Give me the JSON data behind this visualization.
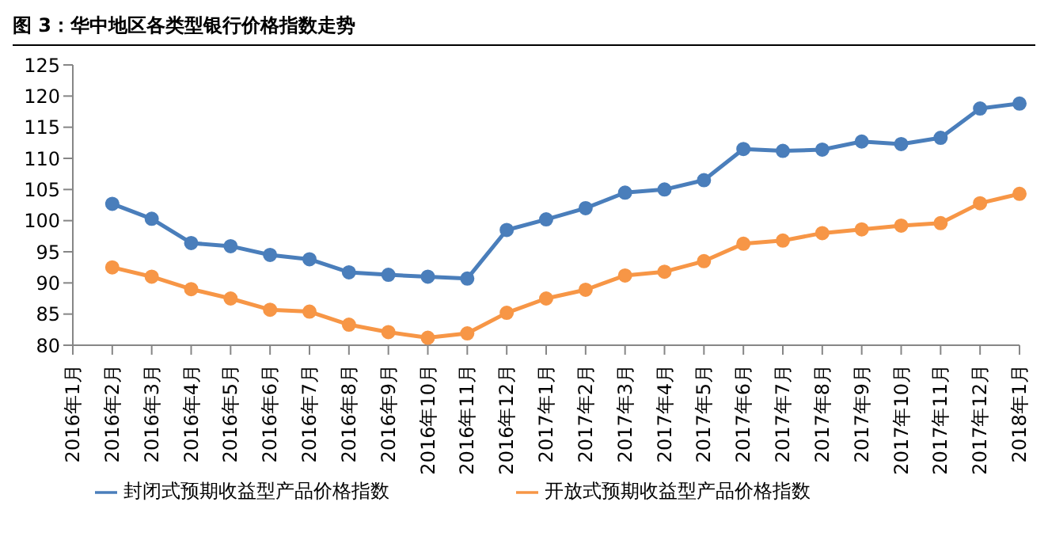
{
  "chart_data": {
    "type": "line",
    "title": "图 3：华中地区各类型银行价格指数走势",
    "categories": [
      "2016年1月",
      "2016年2月",
      "2016年3月",
      "2016年4月",
      "2016年5月",
      "2016年6月",
      "2016年7月",
      "2016年8月",
      "2016年9月",
      "2016年10月",
      "2016年11月",
      "2016年12月",
      "2017年1月",
      "2017年2月",
      "2017年3月",
      "2017年4月",
      "2017年5月",
      "2017年6月",
      "2017年7月",
      "2017年8月",
      "2017年9月",
      "2017年10月",
      "2017年11月",
      "2017年12月",
      "2018年1月"
    ],
    "series": [
      {
        "name": "封闭式预期收益型产品价格指数",
        "color": "#4a7ebb",
        "values": [
          null,
          102.7,
          100.3,
          96.4,
          95.9,
          94.5,
          93.8,
          91.7,
          91.3,
          91.0,
          90.7,
          98.5,
          100.2,
          102.0,
          104.5,
          105.0,
          106.5,
          111.5,
          111.2,
          111.4,
          112.7,
          112.3,
          113.3,
          118.0,
          118.8
        ]
      },
      {
        "name": "开放式预期收益型产品价格指数",
        "color": "#f79646",
        "values": [
          null,
          92.5,
          91.0,
          89.0,
          87.5,
          85.7,
          85.4,
          83.3,
          82.1,
          81.2,
          81.9,
          85.2,
          87.5,
          88.9,
          91.2,
          91.8,
          93.5,
          96.3,
          96.8,
          98.0,
          98.6,
          99.2,
          99.6,
          102.8,
          104.3
        ]
      }
    ],
    "ylim": [
      80,
      125
    ],
    "yticks": [
      80,
      85,
      90,
      95,
      100,
      105,
      110,
      115,
      120,
      125
    ],
    "grid": false,
    "legend": "bottom",
    "marker": "circle",
    "line_style": "solid"
  }
}
